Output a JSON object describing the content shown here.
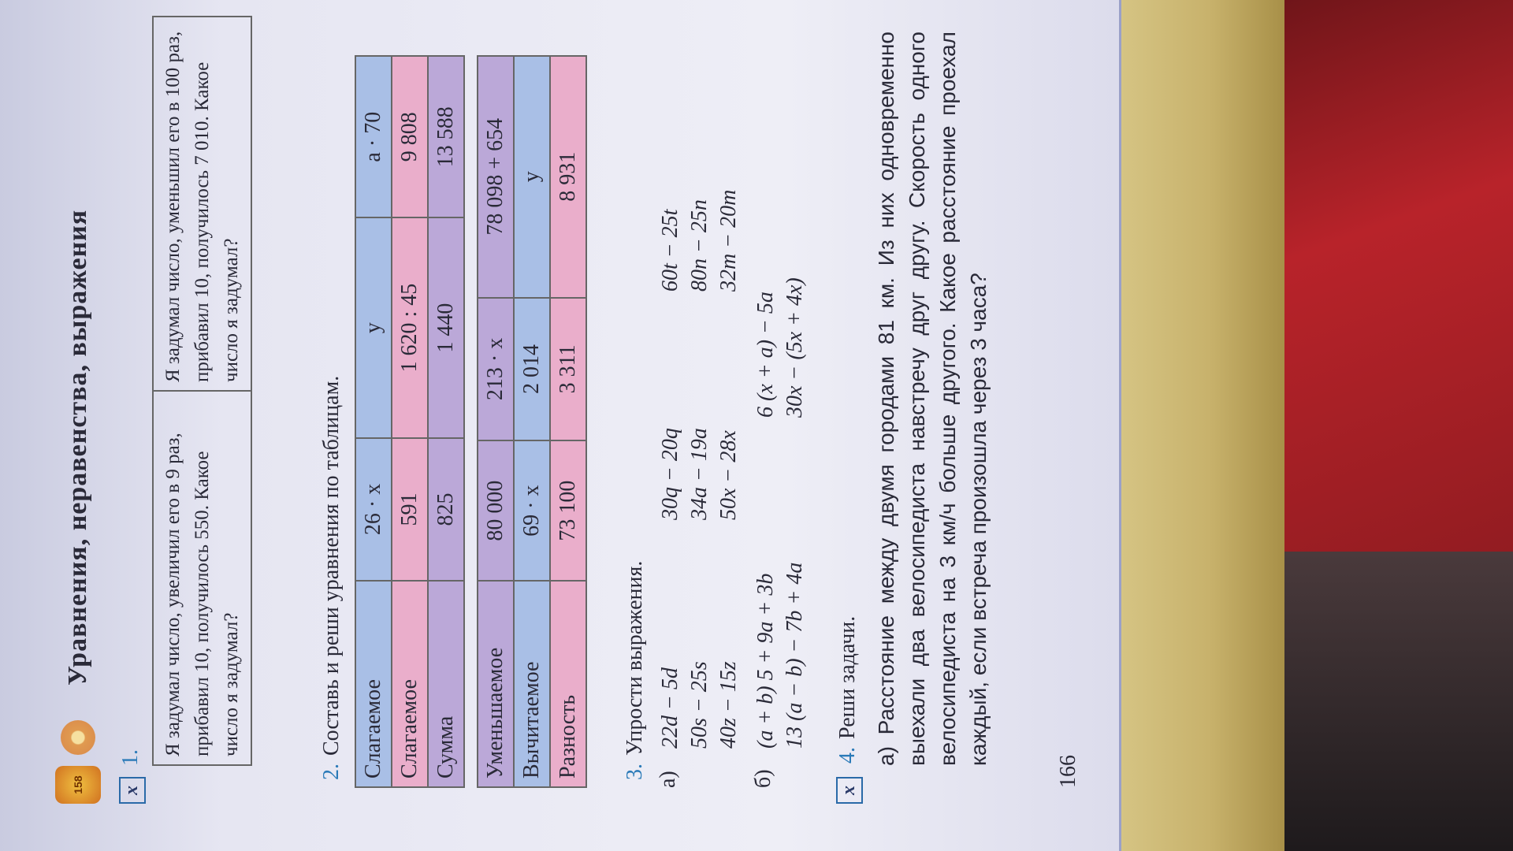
{
  "header": {
    "badge": "158",
    "title": "Уравнения, неравенства, выражения"
  },
  "task1": {
    "number": "1.",
    "marker": "x",
    "left": "Я задумал число, увеличил его в 9 раз, прибавил 10, получилось 550. Какое число я задумал?",
    "right": "Я задумал число, уменьшил его в 100 раз, прибавил 10, получилось 7 010. Какое число я задумал?"
  },
  "task2": {
    "number": "2.",
    "text": "Составь и реши уравнения по таблицам.",
    "table1": [
      [
        "Слагаемое",
        "26 · x",
        "y",
        "a · 70"
      ],
      [
        "Слагаемое",
        "591",
        "1 620 : 45",
        "9 808"
      ],
      [
        "Сумма",
        "825",
        "1 440",
        "13 588"
      ]
    ],
    "table2": [
      [
        "Уменьшаемое",
        "80 000",
        "213 · x",
        "78 098 + 654"
      ],
      [
        "Вычитаемое",
        "69 · x",
        "2 014",
        "y"
      ],
      [
        "Разность",
        "73 100",
        "3 311",
        "8 931"
      ]
    ]
  },
  "task3": {
    "number": "3.",
    "text": "Упрости выражения.",
    "a_label": "а)",
    "a": [
      [
        "22d − 5d",
        "50s − 25s",
        "40z − 15z"
      ],
      [
        "30q − 20q",
        "34a − 19a",
        "50x − 28x"
      ],
      [
        "60t − 25t",
        "80n − 25n",
        "32m − 20m"
      ]
    ],
    "b_label": "б)",
    "b": [
      [
        "(a + b) 5 + 9a + 3b",
        "13 (a − b) − 7b + 4a"
      ],
      [
        "6 (x + a) − 5a",
        "30x − (5x + 4x)"
      ]
    ]
  },
  "task4": {
    "number": "4.",
    "marker": "x",
    "text": "Реши задачи.",
    "a_label": "а)",
    "a": "Расстояние между двумя городами 81 км. Из них одновременно выехали два велосипедиста навстречу друг другу. Скорость одного велосипедиста на 3 км/ч больше другого. Какое расстояние проехал каждый, если встреча произошла через 3 часа?"
  },
  "page_number": "166",
  "colors": {
    "blue_row": "#a9bfe6",
    "pink_row": "#eaaecb",
    "purple_row": "#bba8d8",
    "number_blue": "#2a7ab8"
  }
}
